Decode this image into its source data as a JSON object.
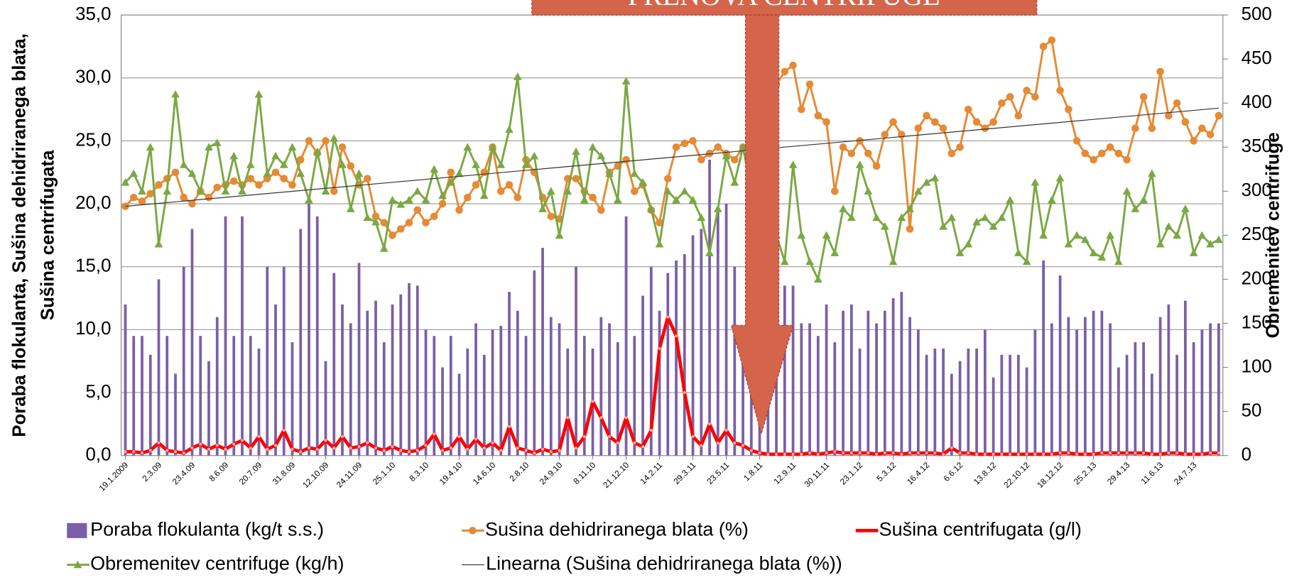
{
  "chart_data": {
    "type": "combo",
    "annotation": "PRENOVA CENTRIFUGE",
    "ylabel": [
      "Poraba flokulanta, Sušina dehidriranega blata,",
      "Sušina centrifugata"
    ],
    "y2label": "Obremenitev centrifuge",
    "ylim": [
      0,
      35
    ],
    "yticks": [
      {
        "value": 0,
        "label": "0,0"
      },
      {
        "value": 5,
        "label": "5,0"
      },
      {
        "value": 10,
        "label": "10,0"
      },
      {
        "value": 15,
        "label": "15,0"
      },
      {
        "value": 20,
        "label": "20,0"
      },
      {
        "value": 25,
        "label": "25,0"
      },
      {
        "value": 30,
        "label": "30,0"
      },
      {
        "value": 35,
        "label": "35,0"
      }
    ],
    "y2lim": [
      0,
      500
    ],
    "y2ticks": [
      0,
      50,
      100,
      150,
      200,
      250,
      300,
      350,
      400,
      450,
      500
    ],
    "grid": true,
    "categories": [
      "19.1.2009",
      null,
      null,
      null,
      "2.3.09",
      null,
      null,
      null,
      "23.4.09",
      null,
      null,
      null,
      "8.6.09",
      null,
      null,
      null,
      "20.7.09",
      null,
      null,
      null,
      "31.8.09",
      null,
      null,
      null,
      "12.10.09",
      null,
      null,
      null,
      "24.11.09",
      null,
      null,
      null,
      "25.1.10",
      null,
      null,
      null,
      "8.3.10",
      null,
      null,
      null,
      "19.4.10",
      null,
      null,
      null,
      "14.6.10",
      null,
      null,
      null,
      "2.8.10",
      null,
      null,
      null,
      "24.9.10",
      null,
      null,
      null,
      "8.11.10",
      null,
      null,
      null,
      "21.12.10",
      null,
      null,
      null,
      "14.2.11",
      null,
      null,
      null,
      "29.3.11",
      null,
      null,
      null,
      "23.5.11",
      null,
      null,
      null,
      "1.8.11",
      null,
      null,
      null,
      "12.9.11",
      null,
      null,
      null,
      "30.11.11",
      null,
      null,
      null,
      "23.1.12",
      null,
      null,
      null,
      "5.3.12",
      null,
      null,
      null,
      "16.4.12",
      null,
      null,
      null,
      "6.6.12",
      null,
      null,
      null,
      "13.8.12",
      null,
      null,
      null,
      "22.10.12",
      null,
      null,
      null,
      "18.12.12",
      null,
      null,
      null,
      "25.2.13",
      null,
      null,
      null,
      "29.4.13",
      null,
      null,
      null,
      "11.6.13",
      null,
      null,
      null,
      "24.7.13",
      null,
      null,
      null
    ],
    "series": [
      {
        "name": "Poraba flokulanta (kg/t s.s.)",
        "kind": "bar",
        "color": "#7b5fa6",
        "values": [
          12,
          9.5,
          9.5,
          8,
          14,
          9.5,
          6.5,
          15,
          18,
          9.5,
          7.5,
          11,
          19,
          9.5,
          19,
          9.5,
          8.5,
          15,
          12,
          15,
          9,
          18,
          20,
          19,
          7.5,
          14.5,
          12,
          10.5,
          15.3,
          11.5,
          12.3,
          9,
          12,
          12.8,
          13.7,
          13.5,
          10,
          9.5,
          7,
          9.5,
          6.5,
          8.5,
          10.5,
          8,
          10,
          10.3,
          13,
          11.5,
          9.5,
          14.7,
          16.5,
          11,
          10.5,
          8.5,
          15,
          9.5,
          8.5,
          11,
          10.5,
          9,
          19,
          9.5,
          12.7,
          15,
          11.5,
          14.5,
          15.5,
          16,
          17.5,
          18,
          23.5,
          19.5,
          20,
          15,
          9.5,
          11.5,
          12.5,
          9.5,
          8,
          13.5,
          13.5,
          10.5,
          10.5,
          9.5,
          12,
          9,
          11.5,
          12,
          8.5,
          11.5,
          10.5,
          11.5,
          12.5,
          13,
          11,
          10,
          8,
          8.5,
          8.5,
          6.5,
          7.5,
          8.5,
          8.5,
          10,
          6.2,
          8,
          8,
          8,
          7,
          10,
          15.5,
          10.5,
          14.3,
          11,
          10,
          11,
          11.5,
          11.5,
          10.5,
          7,
          8,
          9,
          9,
          6.5,
          11,
          12,
          8,
          12.3,
          9,
          10,
          10.5,
          10.5
        ]
      },
      {
        "name": "Sušina dehidriranega blata (%)",
        "kind": "line-circle",
        "color": "#e58a35",
        "values": [
          19.8,
          20.5,
          20.2,
          20.8,
          21.5,
          22,
          22.5,
          20.5,
          20,
          21,
          20.5,
          21.3,
          21.5,
          21.8,
          21.5,
          22,
          21.5,
          22,
          22.5,
          22,
          21.5,
          23.5,
          25,
          24,
          25,
          21,
          24.5,
          23,
          21.5,
          22,
          19,
          18.5,
          17.5,
          18,
          18.5,
          19.5,
          18.5,
          19,
          20,
          22.5,
          19.5,
          20.5,
          21.5,
          22.5,
          24.5,
          21,
          21.5,
          20.5,
          23.5,
          22.5,
          20.5,
          19,
          18.8,
          22,
          22,
          21,
          20.5,
          19.5,
          22.5,
          23,
          23.5,
          21,
          21.5,
          19.5,
          18.5,
          22,
          24.5,
          24.8,
          25,
          23.5,
          24,
          24.5,
          24,
          23.5,
          24.5,
          25,
          24.5,
          26,
          29.5,
          30.5,
          31,
          27.5,
          29.5,
          27,
          26.5,
          21,
          24.5,
          24,
          25,
          24,
          23,
          25.5,
          26.5,
          25.5,
          18,
          26,
          27,
          26.5,
          26,
          24,
          24.5,
          27.5,
          26.5,
          26,
          26.5,
          28,
          28.5,
          27,
          29,
          28.5,
          32.5,
          33,
          29,
          27.5,
          25,
          24,
          23.5,
          24,
          24.5,
          24,
          23.5,
          26,
          28.5,
          26,
          30.5,
          27,
          28,
          26.5,
          25,
          26,
          25.5,
          27
        ]
      },
      {
        "name": "Sušina centrifugata (g/l)",
        "kind": "line-thick",
        "color": "#ff0000",
        "values": [
          0.3,
          0.3,
          0.2,
          0.4,
          1.0,
          0.4,
          0.3,
          0.2,
          0.6,
          0.9,
          0.5,
          0.8,
          0.5,
          0.9,
          1.2,
          0.6,
          1.5,
          0.5,
          0.8,
          2.0,
          0.5,
          0.3,
          0.6,
          0.5,
          1.2,
          0.6,
          1.5,
          0.6,
          0.7,
          1.0,
          0.6,
          0.4,
          0.7,
          0.4,
          0.3,
          0.4,
          0.8,
          1.7,
          0.4,
          0.6,
          1.5,
          0.5,
          1.3,
          0.6,
          1.0,
          0.4,
          2.3,
          0.6,
          0.4,
          0.2,
          0.5,
          0.3,
          0.4,
          3.0,
          0.6,
          1.5,
          4.3,
          3.0,
          1.5,
          1.0,
          3.0,
          1.0,
          0.7,
          2.0,
          8.5,
          11.0,
          9.5,
          5.0,
          1.5,
          0.8,
          2.5,
          1.0,
          2.0,
          1.0,
          0.8,
          0.4,
          0.2,
          0.1,
          0.1,
          0.1,
          0.1,
          0.1,
          0.2,
          0.1,
          0.2,
          0.3,
          0.2,
          0.2,
          0.2,
          0.2,
          0.1,
          0.2,
          0.2,
          0.1,
          0.2,
          0.2,
          0.2,
          0.2,
          0.1,
          0.6,
          0.2,
          0.2,
          0.1,
          0.1,
          0.1,
          0.1,
          0.1,
          0.1,
          0.1,
          0.1,
          0.1,
          0.1,
          0.2,
          0.2,
          0.1,
          0.1,
          0.1,
          0.2,
          0.2,
          0.2,
          0.2,
          0.2,
          0.2,
          0.1,
          0.1,
          0.2,
          0.2,
          0.1,
          0.1,
          0.1,
          0.2,
          0.2
        ]
      },
      {
        "name": "Obremenitev centrifuge (kg/h)",
        "kind": "line-triangle",
        "axis": "y2",
        "color": "#7aa843",
        "values": [
          310,
          320,
          300,
          350,
          240,
          300,
          410,
          330,
          320,
          300,
          350,
          355,
          300,
          340,
          300,
          330,
          410,
          320,
          340,
          330,
          350,
          320,
          290,
          345,
          300,
          360,
          330,
          280,
          320,
          270,
          265,
          235,
          290,
          285,
          290,
          300,
          290,
          325,
          295,
          310,
          320,
          350,
          330,
          295,
          350,
          330,
          370,
          430,
          330,
          340,
          280,
          300,
          250,
          300,
          345,
          290,
          350,
          340,
          320,
          290,
          425,
          320,
          310,
          280,
          240,
          300,
          290,
          300,
          290,
          270,
          230,
          280,
          340,
          310,
          350,
          300,
          260,
          270,
          250,
          220,
          330,
          250,
          220,
          200,
          250,
          230,
          280,
          270,
          330,
          300,
          270,
          260,
          220,
          270,
          280,
          300,
          310,
          315,
          260,
          270,
          230,
          240,
          265,
          270,
          260,
          270,
          290,
          230,
          220,
          310,
          250,
          290,
          315,
          240,
          250,
          245,
          230,
          225,
          250,
          220,
          300,
          280,
          290,
          320,
          240,
          260,
          250,
          280,
          230,
          250,
          240,
          245
        ]
      }
    ],
    "trend": {
      "name": "Linearna (Sušina dehidriranega blata (%))",
      "color": "#333333",
      "start": 19.8,
      "end": 27.6
    }
  }
}
